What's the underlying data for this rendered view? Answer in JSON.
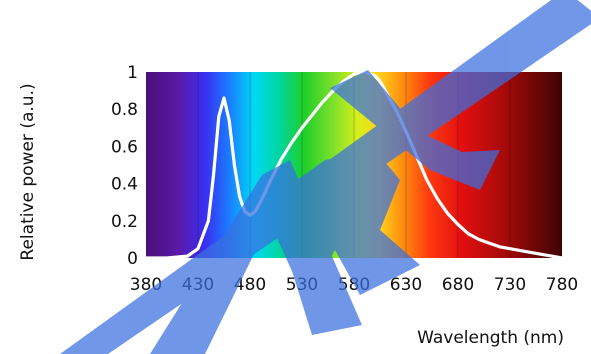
{
  "chart_data": {
    "type": "line",
    "title": "",
    "xlabel": "Wavelength (nm)",
    "ylabel": "Relative power (a.u.)",
    "xlim": [
      380,
      780
    ],
    "ylim": [
      0,
      1
    ],
    "x_ticks": [
      "380",
      "430",
      "480",
      "530",
      "580",
      "630",
      "680",
      "730",
      "780"
    ],
    "y_ticks": [
      "0",
      "0.2",
      "0.4",
      "0.6",
      "0.8",
      "1"
    ],
    "grid": "vertical",
    "background": "visible-spectrum gradient",
    "series": [
      {
        "color": "#ffffff",
        "x": [
          380,
          400,
          420,
          430,
          440,
          445,
          450,
          455,
          460,
          465,
          470,
          475,
          480,
          485,
          490,
          500,
          510,
          520,
          530,
          540,
          550,
          560,
          570,
          580,
          590,
          600,
          605,
          610,
          620,
          630,
          640,
          650,
          660,
          670,
          680,
          690,
          700,
          710,
          720,
          730,
          740,
          750,
          760,
          770,
          780
        ],
        "y": [
          0.0,
          0.0,
          0.01,
          0.05,
          0.2,
          0.45,
          0.76,
          0.86,
          0.74,
          0.5,
          0.33,
          0.25,
          0.23,
          0.25,
          0.3,
          0.42,
          0.53,
          0.62,
          0.7,
          0.77,
          0.84,
          0.9,
          0.95,
          0.99,
          1.0,
          0.98,
          0.95,
          0.9,
          0.8,
          0.68,
          0.55,
          0.42,
          0.32,
          0.24,
          0.18,
          0.13,
          0.1,
          0.08,
          0.06,
          0.05,
          0.04,
          0.03,
          0.02,
          0.01,
          0.0
        ]
      }
    ],
    "watermark_color": "#3a6fe0"
  }
}
